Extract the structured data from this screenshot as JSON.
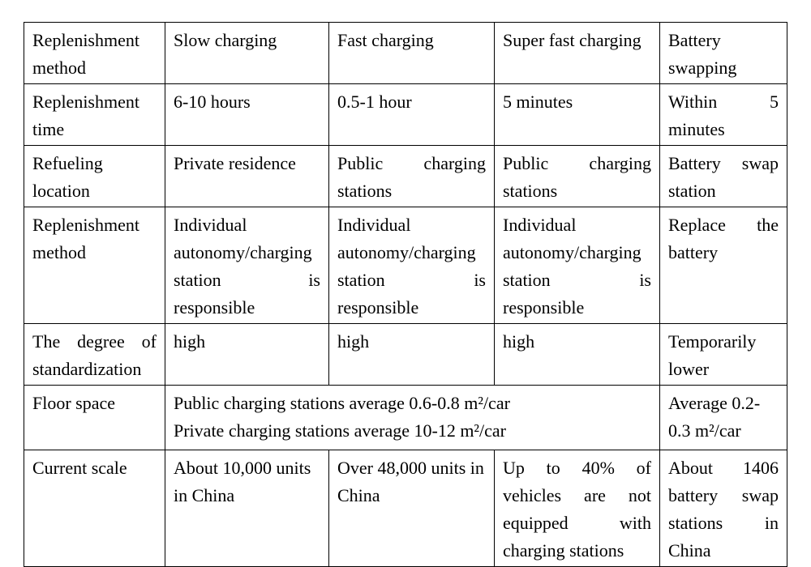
{
  "table": {
    "header": {
      "c0": "Replenishment method",
      "c1": "Slow charging",
      "c2": "Fast charging",
      "c3": "Super fast charging",
      "c4": "Battery swapping"
    },
    "row_time": {
      "label": "Replenishment time",
      "c1": "6-10 hours",
      "c2": "0.5-1 hour",
      "c3": "5 minutes",
      "c4": "Within 5 minutes"
    },
    "row_location": {
      "label": "Refueling location",
      "c1": "Private residence",
      "c2": "Public charging stations",
      "c3": "Public charging stations",
      "c4": "Battery swap station"
    },
    "row_method": {
      "label": "Replenishment method",
      "c1": "Individual autonomy/charging station is responsible",
      "c2": "Individual autonomy/charging station is responsible",
      "c3": "Individual autonomy/charging station is responsible",
      "c4": "Replace the battery"
    },
    "row_standard": {
      "label": "The degree of standardization",
      "c1": "high",
      "c2": "high",
      "c3": "high",
      "c4": "Temporarily lower"
    },
    "row_floor": {
      "label": "Floor space",
      "merged_line1": "Public charging stations average 0.6-0.8 m²/car",
      "merged_line2": "Private charging stations average 10-12 m²/car",
      "c4": "Average 0.2-0.3 m²/car"
    },
    "row_scale": {
      "label": "Current scale",
      "c1": "About 10,000 units in China",
      "c2": "Over 48,000 units in China",
      "c3": "Up to 40% of vehicles are not equipped with charging stations",
      "c4": "About 1406 battery swap stations in China"
    }
  }
}
